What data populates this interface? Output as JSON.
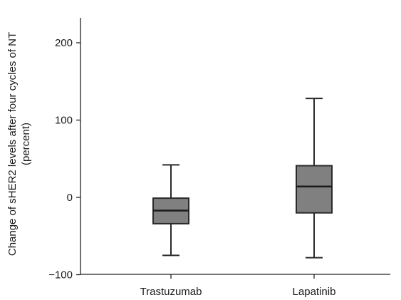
{
  "chart_data": {
    "type": "boxplot",
    "title": "",
    "xlabel": "",
    "ylabel_line1": "Change of sHER2 levels after four cycles of NT",
    "ylabel_line2": "(percent)",
    "ylim": [
      -100,
      235
    ],
    "yticks": [
      -100,
      0,
      100,
      200
    ],
    "ytick_labels": [
      "−100",
      "0",
      "100",
      "200"
    ],
    "grid": false,
    "box_color": "#808080",
    "categories": [
      "Trastuzumab",
      "Lapatinib"
    ],
    "boxes": [
      {
        "name": "Trastuzumab",
        "whisker_low": -75,
        "q1": -34,
        "median": -17,
        "q3": -1,
        "whisker_high": 42
      },
      {
        "name": "Lapatinib",
        "whisker_low": -78,
        "q1": -20,
        "median": 14,
        "q3": 41,
        "whisker_high": 128
      }
    ]
  }
}
